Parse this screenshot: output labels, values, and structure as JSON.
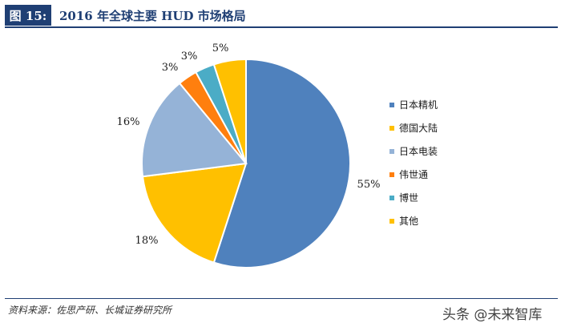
{
  "header": {
    "figure_label": "图 15:",
    "title": "2016 年全球主要 HUD 市场格局"
  },
  "chart_data": {
    "type": "pie",
    "title": "2016 年全球主要 HUD 市场格局",
    "slices": [
      {
        "name": "日本精机",
        "value": 55,
        "label": "55%",
        "color": "#4f81bd"
      },
      {
        "name": "德国大陆",
        "value": 18,
        "label": "18%",
        "color": "#ffc000"
      },
      {
        "name": "日本电装",
        "value": 16,
        "label": "16%",
        "color": "#95b3d7"
      },
      {
        "name": "伟世通",
        "value": 3,
        "label": "3%",
        "color": "#ff7f0e"
      },
      {
        "name": "博世",
        "value": 3,
        "label": "3%",
        "color": "#4bacc6"
      },
      {
        "name": "其他",
        "value": 5,
        "label": "5%",
        "color": "#ffc000"
      }
    ],
    "legend_position": "right",
    "start_angle": "12 o'clock",
    "direction": "clockwise"
  },
  "source": "资料来源：佐思产研、长城证券研究所",
  "watermark": "头条 @未来智库"
}
